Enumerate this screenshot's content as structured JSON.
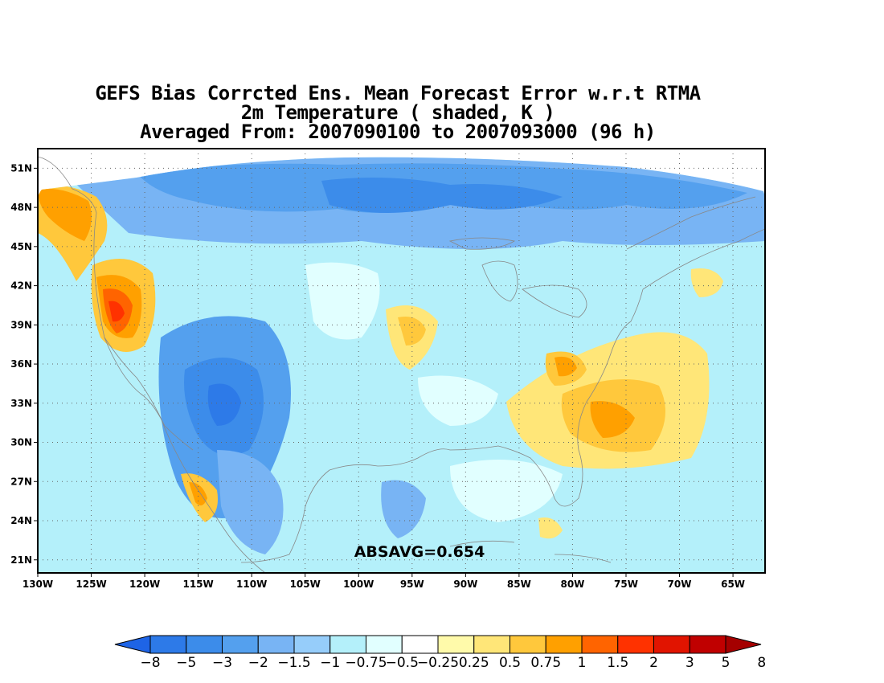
{
  "title": {
    "line1": "GEFS Bias Corrcted Ens. Mean Forecast Error w.r.t RTMA",
    "line2": "2m Temperature ( shaded, K )",
    "line3": "Averaged From: 2007090100 to 2007093000 (96 h)"
  },
  "stat_label": "ABSAVG=0.654",
  "colors": {
    "bins": [
      "#1e64e6",
      "#2d7ae8",
      "#3c8cea",
      "#54a0ee",
      "#78b4f4",
      "#96cdfa",
      "#b4f0fa",
      "#e1ffff",
      "#ffffff",
      "#fffaaa",
      "#ffe678",
      "#ffc83c",
      "#ffa000",
      "#ff6400",
      "#ff3200",
      "#e11400",
      "#c00000",
      "#a50000"
    ],
    "coast": "#888888",
    "grid": "#666666"
  },
  "chart_data": {
    "type": "heatmap",
    "projection": "lat-lon",
    "xlim": [
      -130,
      -62
    ],
    "ylim": [
      20,
      52.5
    ],
    "x_ticks": [
      {
        "value": -130,
        "label": "130W"
      },
      {
        "value": -125,
        "label": "125W"
      },
      {
        "value": -120,
        "label": "120W"
      },
      {
        "value": -115,
        "label": "115W"
      },
      {
        "value": -110,
        "label": "110W"
      },
      {
        "value": -105,
        "label": "105W"
      },
      {
        "value": -100,
        "label": "100W"
      },
      {
        "value": -95,
        "label": "95W"
      },
      {
        "value": -90,
        "label": "90W"
      },
      {
        "value": -85,
        "label": "85W"
      },
      {
        "value": -80,
        "label": "80W"
      },
      {
        "value": -75,
        "label": "75W"
      },
      {
        "value": -70,
        "label": "70W"
      },
      {
        "value": -65,
        "label": "65W"
      }
    ],
    "y_ticks": [
      {
        "value": 51,
        "label": "51N"
      },
      {
        "value": 48,
        "label": "48N"
      },
      {
        "value": 45,
        "label": "45N"
      },
      {
        "value": 42,
        "label": "42N"
      },
      {
        "value": 39,
        "label": "39N"
      },
      {
        "value": 36,
        "label": "36N"
      },
      {
        "value": 33,
        "label": "33N"
      },
      {
        "value": 30,
        "label": "30N"
      },
      {
        "value": 27,
        "label": "27N"
      },
      {
        "value": 24,
        "label": "24N"
      },
      {
        "value": 21,
        "label": "21N"
      }
    ],
    "grid": true,
    "colorbar": {
      "labels": [
        "-8",
        "-5",
        "-3",
        "-2",
        "-1.5",
        "-1",
        "-0.75",
        "-0.5",
        "-0.25",
        "0.25",
        "0.5",
        "0.75",
        "1",
        "1.5",
        "2",
        "3",
        "5",
        "8"
      ]
    },
    "fields": [
      {
        "lon": -92,
        "lat": 47,
        "value": -2
      },
      {
        "lon": -105,
        "lat": 48,
        "value": -1.5
      },
      {
        "lon": -80,
        "lat": 48,
        "value": -1.5
      },
      {
        "lon": -70,
        "lat": 46,
        "value": -1
      },
      {
        "lon": -110,
        "lat": 34,
        "value": -3
      },
      {
        "lon": -108,
        "lat": 38,
        "value": -2
      },
      {
        "lon": -113,
        "lat": 30,
        "value": -1.5
      },
      {
        "lon": -105,
        "lat": 27,
        "value": -1
      },
      {
        "lon": -93,
        "lat": 24,
        "value": -0.75
      },
      {
        "lon": -86,
        "lat": 36,
        "value": -0.75
      },
      {
        "lon": -123,
        "lat": 40,
        "value": 3
      },
      {
        "lon": -127,
        "lat": 49,
        "value": 1.5
      },
      {
        "lon": -95,
        "lat": 39,
        "value": 1
      },
      {
        "lon": -80,
        "lat": 36.5,
        "value": 1.5
      },
      {
        "lon": -76,
        "lat": 32,
        "value": 1.5
      },
      {
        "lon": -72,
        "lat": 33,
        "value": 0.5
      },
      {
        "lon": -115,
        "lat": 26,
        "value": 1
      },
      {
        "lon": -66,
        "lat": 42,
        "value": 0.5
      }
    ]
  }
}
